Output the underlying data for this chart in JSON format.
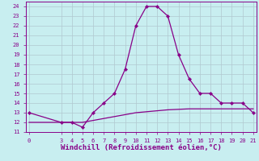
{
  "background_color": "#c8eef0",
  "grid_color": "#b0c8d0",
  "line_color": "#880088",
  "xlabel": "Windchill (Refroidissement éolien,°C)",
  "x_hours": [
    0,
    3,
    4,
    5,
    6,
    7,
    8,
    9,
    10,
    11,
    12,
    13,
    14,
    15,
    16,
    17,
    18,
    19,
    20,
    21
  ],
  "y_temp": [
    13,
    12,
    12,
    11.5,
    13,
    14,
    15,
    17.5,
    22,
    24,
    24,
    23,
    19,
    16.5,
    15,
    15,
    14,
    14,
    14,
    13
  ],
  "y_wind": [
    12,
    12,
    12,
    12,
    12.2,
    12.4,
    12.6,
    12.8,
    13.0,
    13.1,
    13.2,
    13.3,
    13.35,
    13.4,
    13.4,
    13.4,
    13.4,
    13.4,
    13.4,
    13.4
  ],
  "ylim": [
    11,
    24.5
  ],
  "xlim": [
    -0.3,
    21.3
  ],
  "yticks": [
    11,
    12,
    13,
    14,
    15,
    16,
    17,
    18,
    19,
    20,
    21,
    22,
    23,
    24
  ],
  "xticks": [
    0,
    3,
    4,
    5,
    6,
    7,
    8,
    9,
    10,
    11,
    12,
    13,
    14,
    15,
    16,
    17,
    18,
    19,
    20,
    21
  ],
  "tick_label_size": 5,
  "xlabel_size": 6.5
}
